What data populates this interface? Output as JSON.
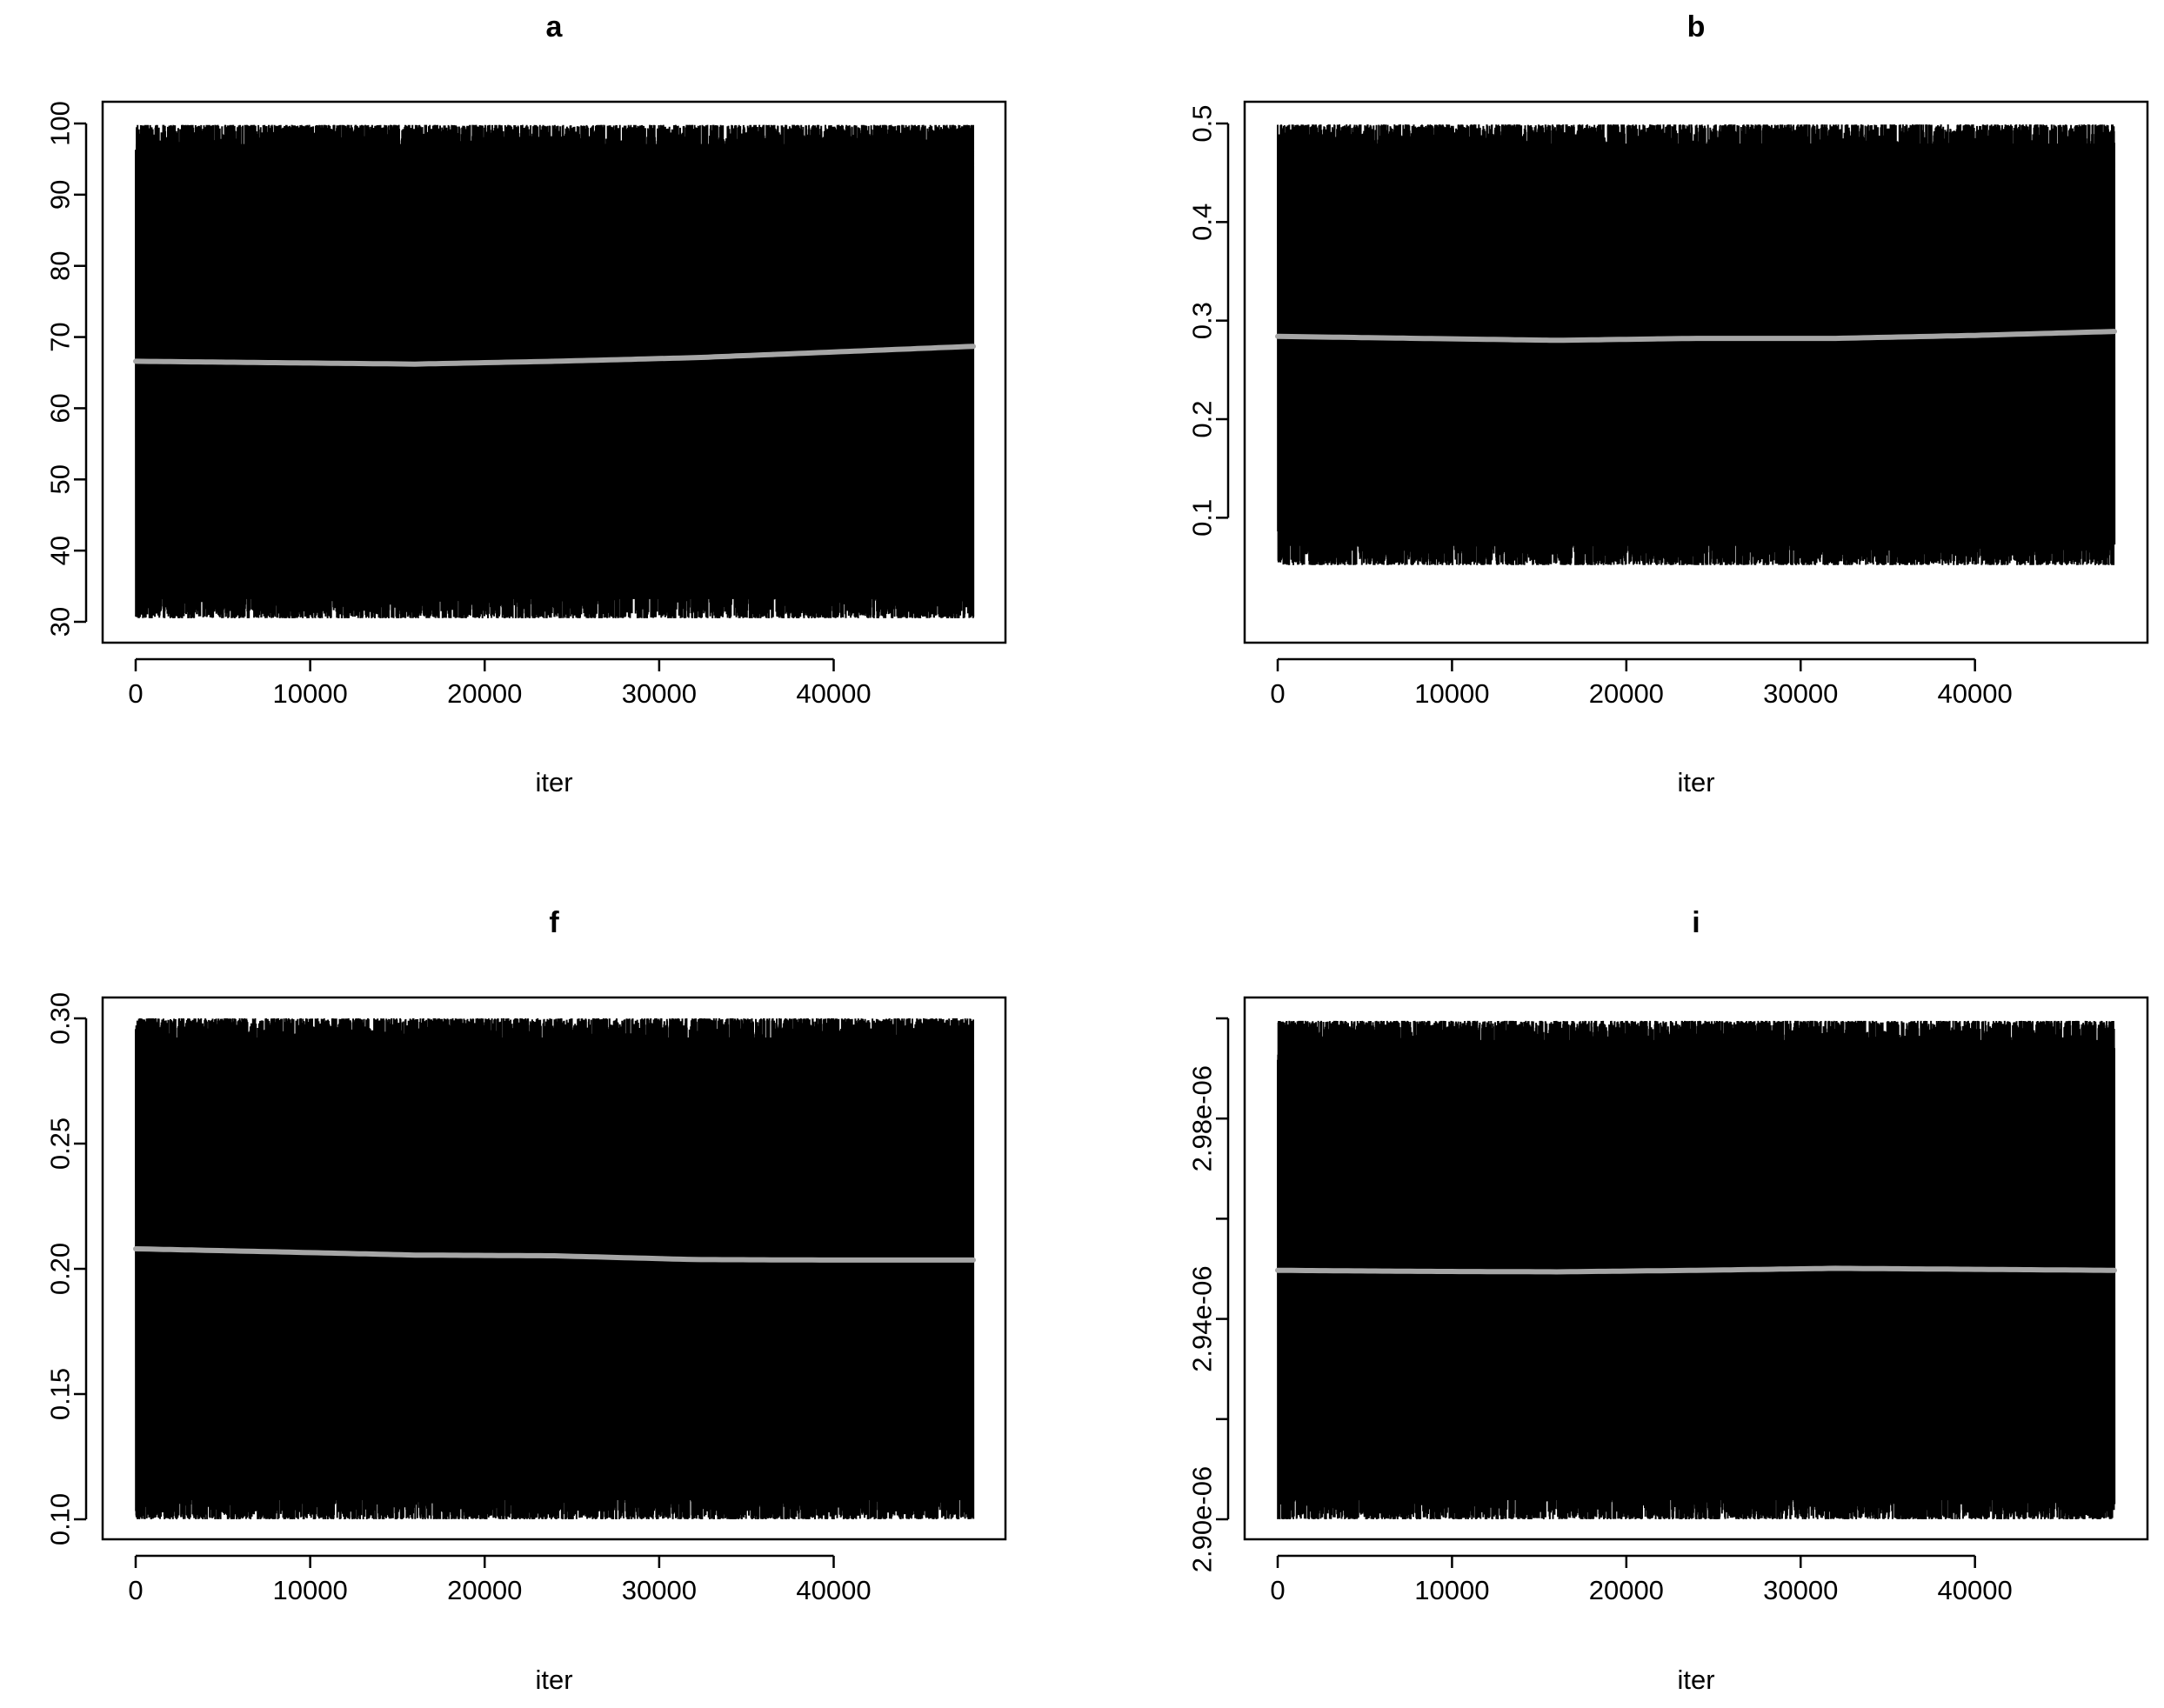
{
  "chart_data": [
    {
      "type": "line",
      "title": "a",
      "xlabel": "iter",
      "ylabel": "",
      "xlim": [
        0,
        48000
      ],
      "ylim": [
        30,
        100
      ],
      "x_ticks": [
        0,
        10000,
        20000,
        30000,
        40000
      ],
      "x_tick_labels": [
        "0",
        "10000",
        "20000",
        "30000",
        "40000"
      ],
      "y_ticks": [
        30,
        40,
        50,
        60,
        70,
        80,
        90,
        100
      ],
      "y_tick_labels": [
        "30",
        "40",
        "50",
        "60",
        "70",
        "80",
        "90",
        "100"
      ],
      "series": [
        {
          "role": "trace",
          "color": "#000000",
          "min": 30.5,
          "max": 99.8
        },
        {
          "role": "smooth",
          "color": "#a6a6a6",
          "x": [
            0,
            8000,
            16000,
            24000,
            32000,
            40000,
            48000
          ],
          "y": [
            66.6,
            66.4,
            66.2,
            66.6,
            67.1,
            67.9,
            68.7
          ]
        }
      ]
    },
    {
      "type": "line",
      "title": "b",
      "xlabel": "iter",
      "ylabel": "",
      "xlim": [
        0,
        48000
      ],
      "ylim": [
        0.05,
        0.5
      ],
      "x_ticks": [
        0,
        10000,
        20000,
        30000,
        40000
      ],
      "x_tick_labels": [
        "0",
        "10000",
        "20000",
        "30000",
        "40000"
      ],
      "y_ticks": [
        0.1,
        0.2,
        0.3,
        0.4,
        0.5
      ],
      "y_tick_labels": [
        "0.1",
        "0.2",
        "0.3",
        "0.4",
        "0.5"
      ],
      "series": [
        {
          "role": "trace",
          "color": "#000000",
          "min": 0.052,
          "max": 0.499
        },
        {
          "role": "smooth",
          "color": "#a6a6a6",
          "x": [
            0,
            8000,
            16000,
            24000,
            32000,
            40000,
            48000
          ],
          "y": [
            0.284,
            0.282,
            0.28,
            0.282,
            0.282,
            0.285,
            0.289
          ]
        }
      ]
    },
    {
      "type": "line",
      "title": "f",
      "xlabel": "iter",
      "ylabel": "",
      "xlim": [
        0,
        48000
      ],
      "ylim": [
        0.1,
        0.3
      ],
      "x_ticks": [
        0,
        10000,
        20000,
        30000,
        40000
      ],
      "x_tick_labels": [
        "0",
        "10000",
        "20000",
        "30000",
        "40000"
      ],
      "y_ticks": [
        0.1,
        0.15,
        0.2,
        0.25,
        0.3
      ],
      "y_tick_labels": [
        "0.10",
        "0.15",
        "0.20",
        "0.25",
        "0.30"
      ],
      "series": [
        {
          "role": "trace",
          "color": "#000000",
          "min": 0.1,
          "max": 0.3
        },
        {
          "role": "smooth",
          "color": "#a6a6a6",
          "x": [
            0,
            8000,
            16000,
            24000,
            32000,
            40000,
            48000
          ],
          "y": [
            0.208,
            0.2068,
            0.2055,
            0.2052,
            0.2037,
            0.2035,
            0.2035
          ]
        }
      ]
    },
    {
      "type": "line",
      "title": "i",
      "xlabel": "iter",
      "ylabel": "",
      "xlim": [
        0,
        48000
      ],
      "ylim": [
        2.9e-06,
        3e-06
      ],
      "x_ticks": [
        0,
        10000,
        20000,
        30000,
        40000
      ],
      "x_tick_labels": [
        "0",
        "10000",
        "20000",
        "30000",
        "40000"
      ],
      "y_ticks": [
        2.9e-06,
        2.92e-06,
        2.94e-06,
        2.96e-06,
        2.98e-06,
        3e-06
      ],
      "y_tick_labels": [
        "2.90e-06",
        "",
        "2.94e-06",
        "",
        "2.98e-06",
        ""
      ],
      "series": [
        {
          "role": "trace",
          "color": "#000000",
          "min": 2.9e-06,
          "max": 2.9995e-06
        },
        {
          "role": "smooth",
          "color": "#a6a6a6",
          "x": [
            0,
            8000,
            16000,
            24000,
            32000,
            40000,
            48000
          ],
          "y": [
            2.9497e-06,
            2.9495e-06,
            2.9494e-06,
            2.9497e-06,
            2.9501e-06,
            2.9499e-06,
            2.9497e-06
          ]
        }
      ]
    }
  ]
}
